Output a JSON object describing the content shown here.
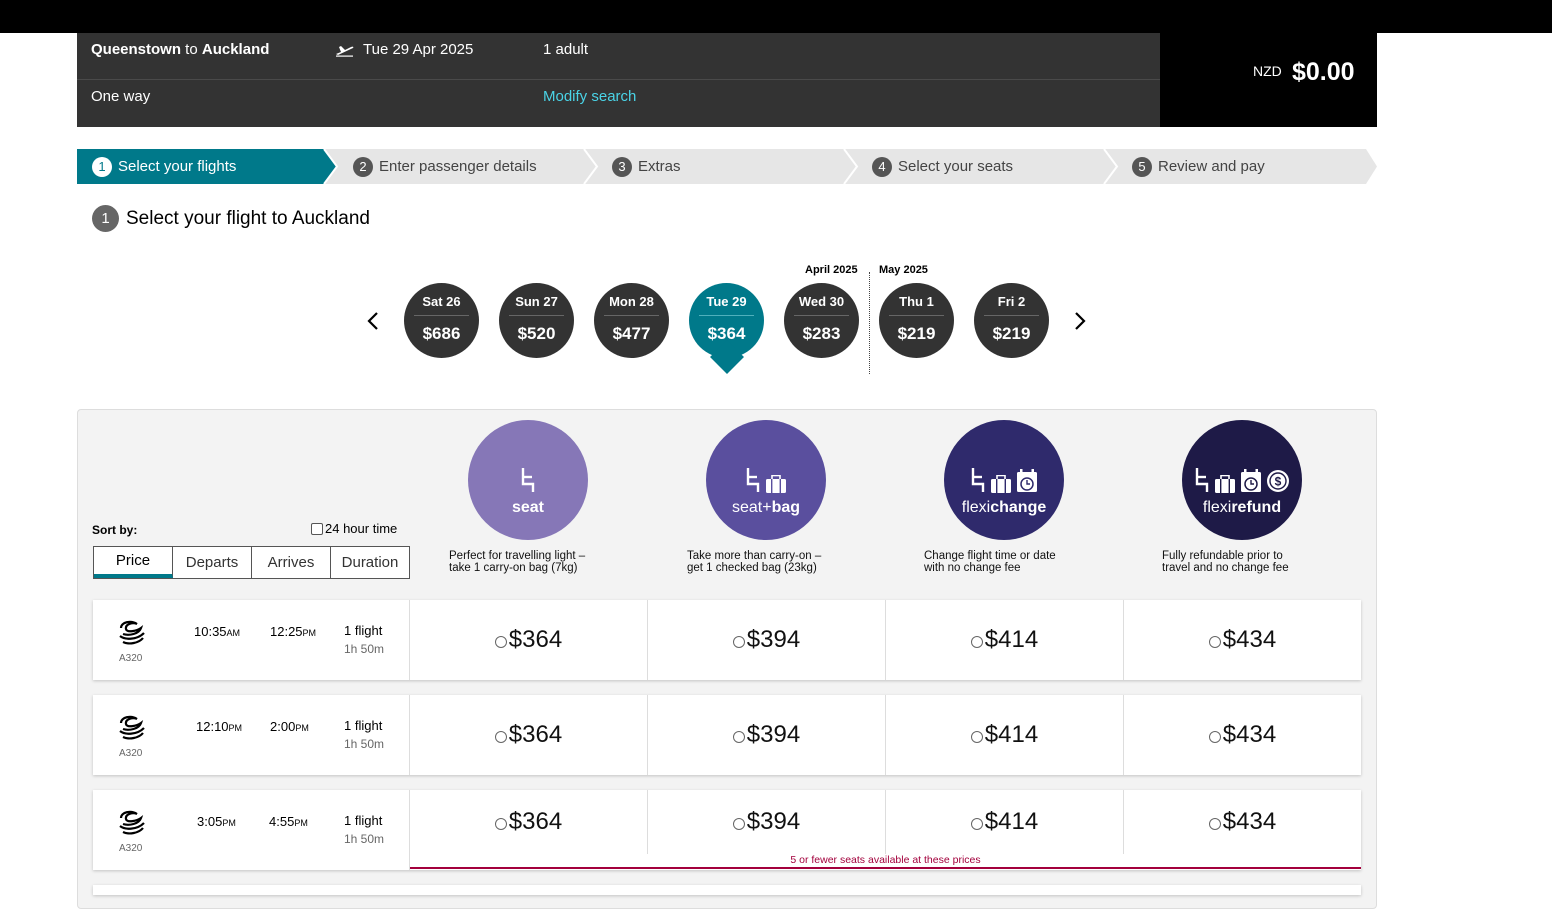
{
  "summary": {
    "origin": "Queenstown",
    "to_word": " to ",
    "destination": "Auckland",
    "date": "Tue 29 Apr 2025",
    "passengers": "1 adult",
    "trip_type": "One way",
    "modify_link": "Modify search",
    "currency": "NZD",
    "total": "$0.00",
    "icon": "plane-depart-icon"
  },
  "steps": [
    {
      "num": "1",
      "label": "Select your flights"
    },
    {
      "num": "2",
      "label": "Enter passenger details"
    },
    {
      "num": "3",
      "label": "Extras"
    },
    {
      "num": "4",
      "label": "Select your seats"
    },
    {
      "num": "5",
      "label": "Review and pay"
    }
  ],
  "page_title": {
    "num": "1",
    "label": "Select your flight to Auckland"
  },
  "calendar": {
    "month1": "April 2025",
    "month2": "May 2025",
    "prev_icon": "chevron-left-icon",
    "next_icon": "chevron-right-icon",
    "days": [
      {
        "label": "Sat 26",
        "price": "$686"
      },
      {
        "label": "Sun 27",
        "price": "$520"
      },
      {
        "label": "Mon 28",
        "price": "$477"
      },
      {
        "label": "Tue 29",
        "price": "$364"
      },
      {
        "label": "Wed 30",
        "price": "$283"
      },
      {
        "label": "Thu 1",
        "price": "$219"
      },
      {
        "label": "Fri 2",
        "price": "$219"
      }
    ]
  },
  "sort": {
    "label": "Sort by:",
    "hour24": "24 hour time",
    "tabs": [
      "Price",
      "Departs",
      "Arrives",
      "Duration"
    ]
  },
  "fares": [
    {
      "name_a": "seat",
      "name_b": "",
      "color": "#8677b7",
      "desc1": "Perfect for travelling light –",
      "desc2": "take 1 carry-on bag (7kg)"
    },
    {
      "name_a": "seat+",
      "name_b": "bag",
      "color": "#5a4f9e",
      "desc1": "Take more than carry-on –",
      "desc2": "get 1 checked bag (23kg)"
    },
    {
      "name_a": "flexi",
      "name_b": "change",
      "color": "#2f2a6c",
      "desc1": "Change flight time or date",
      "desc2": "with no change fee"
    },
    {
      "name_a": "flexi",
      "name_b": "refund",
      "color": "#1e1a47",
      "desc1": "Fully refundable prior to",
      "desc2": "travel and no change fee"
    }
  ],
  "flights": [
    {
      "aircraft": "A320",
      "dep": "10:35",
      "dep_ampm": "AM",
      "arr": "12:25",
      "arr_ampm": "PM",
      "flights": "1 flight",
      "duration": "1h 50m",
      "prices": [
        "$364",
        "$394",
        "$414",
        "$434"
      ]
    },
    {
      "aircraft": "A320",
      "dep": "12:10",
      "dep_ampm": "PM",
      "arr": "2:00",
      "arr_ampm": "PM",
      "flights": "1 flight",
      "duration": "1h 50m",
      "prices": [
        "$364",
        "$394",
        "$414",
        "$434"
      ]
    },
    {
      "aircraft": "A320",
      "dep": "3:05",
      "dep_ampm": "PM",
      "arr": "4:55",
      "arr_ampm": "PM",
      "flights": "1 flight",
      "duration": "1h 50m",
      "prices": [
        "$364",
        "$394",
        "$414",
        "$434"
      ]
    }
  ],
  "seat_warning": "5 or fewer seats available at these prices"
}
